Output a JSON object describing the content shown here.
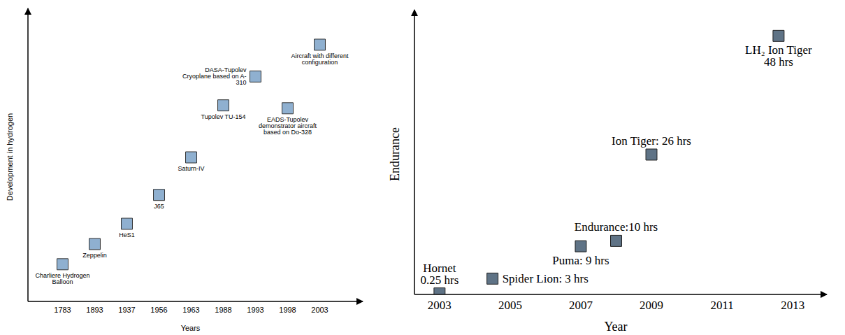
{
  "chart_data": [
    {
      "type": "scatter",
      "x_label": "Years",
      "y_label": "Development in hydrogen",
      "categories": [
        "1783",
        "1893",
        "1937",
        "1956",
        "1963",
        "1988",
        "1993",
        "1998",
        "2003"
      ],
      "labels": [
        "Charliere Hydrogen Balloon",
        "Zeppelin",
        "HeS1",
        "J65",
        "Saturn-IV",
        "Tupolev TU-154",
        "DASA-Tupolev Cryoplane based on A-310",
        "EADS-Tupolev demonstrator aircraft based on Do-328",
        "Aircraft with different configuration"
      ],
      "values": [
        1.3,
        2.0,
        2.7,
        3.7,
        5.0,
        6.8,
        7.8,
        6.7,
        8.9
      ],
      "ylim": [
        0,
        10
      ],
      "yticks": [],
      "tick_labels": "x",
      "grid": false,
      "marker": "square",
      "color": "#8fb0d0"
    },
    {
      "type": "scatter",
      "x_label": "Year",
      "y_label": "Endurance",
      "x": [
        2003,
        2004.5,
        2007,
        2008,
        2009,
        2012.6
      ],
      "values": [
        0.25,
        3,
        9,
        10,
        26,
        48
      ],
      "labels": [
        "Hornet\n0.25 hrs",
        "Spider Lion: 3 hrs",
        "Puma: 9 hrs",
        "Endurance:10 hrs",
        "Ion Tiger: 26 hrs",
        "LH₂ Ion Tiger\n48 hrs"
      ],
      "xlim": [
        2002.3,
        2013.7
      ],
      "xticks": [
        2003,
        2005,
        2007,
        2009,
        2011,
        2013
      ],
      "ylim": [
        0,
        52
      ],
      "yticks": [],
      "tick_labels": "x",
      "grid": false,
      "data_labels": true,
      "marker": "square",
      "color": "#5f7386"
    }
  ]
}
